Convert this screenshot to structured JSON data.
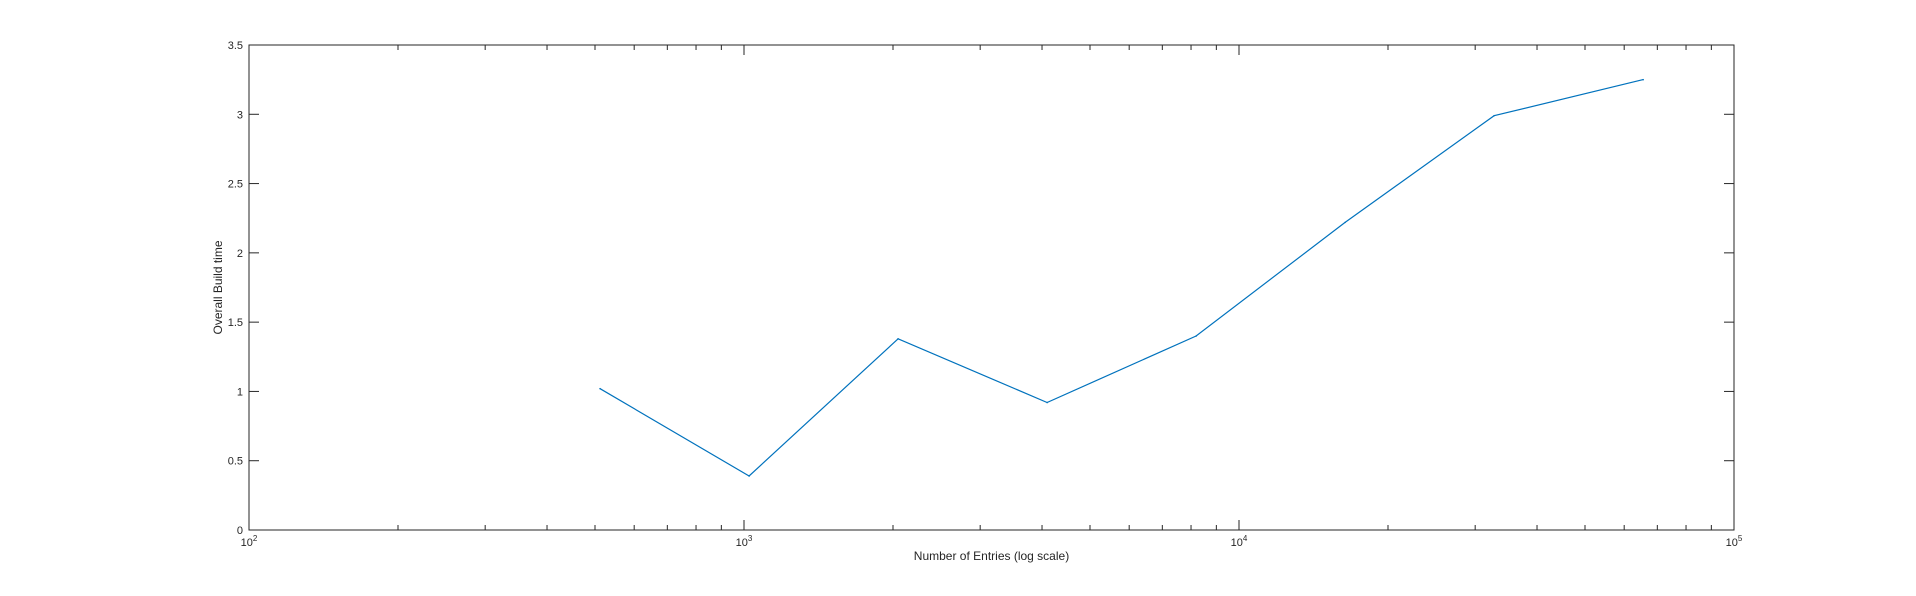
{
  "chart_data": {
    "type": "line",
    "title": "",
    "xlabel": "Number of Entries (log scale)",
    "ylabel": "Overall Build time",
    "x_scale": "log",
    "xlim": [
      100,
      100000
    ],
    "ylim": [
      0,
      3.5
    ],
    "grid": false,
    "legend": "none",
    "line_color": "#0072BD",
    "axis_color": "#262626",
    "x_ticks": [
      {
        "value": 100,
        "base": "10",
        "exp": "2"
      },
      {
        "value": 1000,
        "base": "10",
        "exp": "3"
      },
      {
        "value": 10000,
        "base": "10",
        "exp": "4"
      },
      {
        "value": 100000,
        "base": "10",
        "exp": "5"
      }
    ],
    "y_ticks": [
      {
        "value": 0,
        "label": "0"
      },
      {
        "value": 0.5,
        "label": "0.5"
      },
      {
        "value": 1,
        "label": "1"
      },
      {
        "value": 1.5,
        "label": "1.5"
      },
      {
        "value": 2,
        "label": "2"
      },
      {
        "value": 2.5,
        "label": "2.5"
      },
      {
        "value": 3,
        "label": "3"
      },
      {
        "value": 3.5,
        "label": "3.5"
      }
    ],
    "series": [
      {
        "x": [
          512,
          1024,
          2048,
          4096,
          8192,
          16384,
          32768,
          65536
        ],
        "y": [
          1.02,
          0.39,
          1.38,
          0.92,
          1.4,
          2.22,
          2.99,
          3.25
        ]
      }
    ]
  }
}
